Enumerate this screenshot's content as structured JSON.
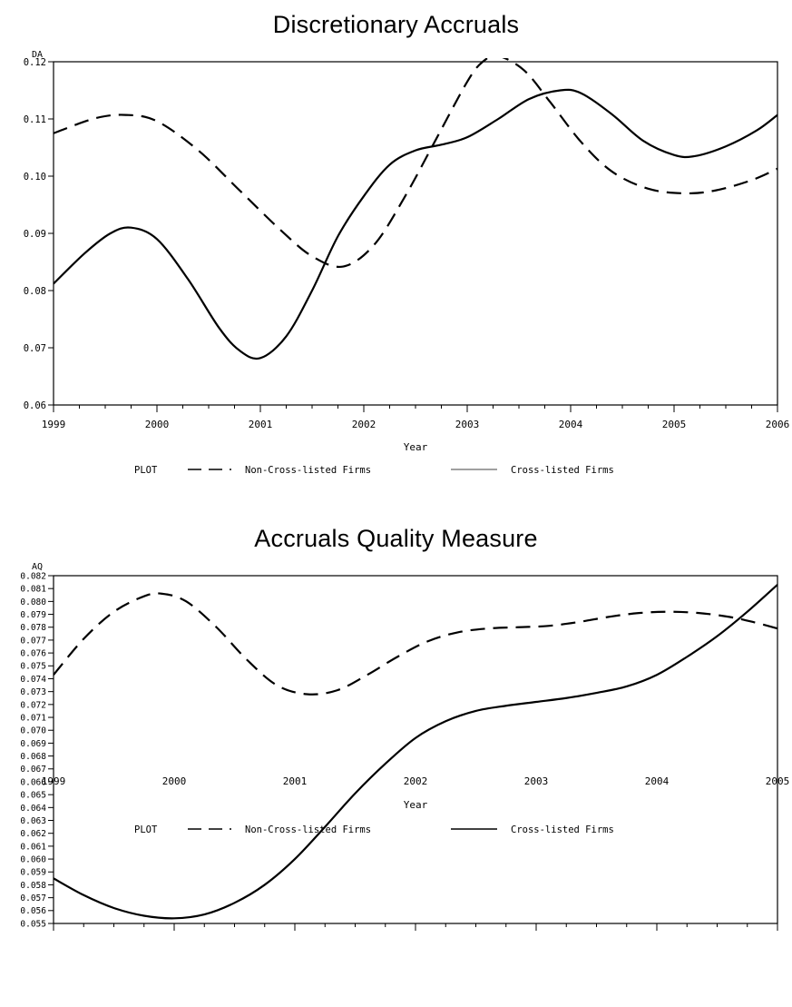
{
  "chart_data": [
    {
      "type": "line",
      "title": "Discretionary Accruals",
      "ylabel": "DA",
      "xlabel": "Year",
      "xlim": [
        1999,
        2006
      ],
      "ylim": [
        0.06,
        0.12
      ],
      "x_ticks": [
        "1999",
        "2000",
        "2001",
        "2002",
        "2003",
        "2004",
        "2005",
        "2006"
      ],
      "y_ticks": [
        "0.06",
        "0.07",
        "0.08",
        "0.09",
        "0.10",
        "0.11",
        "0.12"
      ],
      "legend": {
        "label": "PLOT",
        "position": "bottom",
        "entries": [
          "Non-Cross-listed Firms",
          "Cross-listed Firms"
        ]
      },
      "grid": false,
      "series": [
        {
          "name": "Non-Cross-listed Firms",
          "style": "dashed",
          "x": [
            1999,
            1999.4,
            1999.7,
            2000.0,
            2000.4,
            2000.8,
            2001.2,
            2001.5,
            2001.8,
            2002.1,
            2002.4,
            2002.7,
            2003.0,
            2003.15,
            2003.3,
            2003.55,
            2003.8,
            2004.1,
            2004.4,
            2004.75,
            2005.1,
            2005.4,
            2005.75,
            2006
          ],
          "values": [
            0.1075,
            0.1101,
            0.1107,
            0.1096,
            0.1045,
            0.0975,
            0.0905,
            0.086,
            0.0842,
            0.088,
            0.0965,
            0.1065,
            0.1165,
            0.12,
            0.121,
            0.1185,
            0.113,
            0.106,
            0.1008,
            0.0978,
            0.097,
            0.0975,
            0.0993,
            0.1013
          ]
        },
        {
          "name": "Cross-listed Firms",
          "style": "solid",
          "x": [
            1999,
            1999.3,
            1999.55,
            1999.75,
            2000.0,
            2000.3,
            2000.6,
            2000.8,
            2001.0,
            2001.25,
            2001.5,
            2001.75,
            2002.0,
            2002.25,
            2002.5,
            2002.75,
            2003.0,
            2003.3,
            2003.6,
            2003.9,
            2004.1,
            2004.4,
            2004.7,
            2005.0,
            2005.2,
            2005.5,
            2005.8,
            2006
          ],
          "values": [
            0.0812,
            0.0865,
            0.09,
            0.091,
            0.089,
            0.082,
            0.0735,
            0.0695,
            0.0682,
            0.072,
            0.08,
            0.0895,
            0.0965,
            0.102,
            0.1045,
            0.1055,
            0.1068,
            0.11,
            0.1135,
            0.115,
            0.1145,
            0.1108,
            0.1062,
            0.1037,
            0.1035,
            0.1052,
            0.108,
            0.1107
          ]
        }
      ]
    },
    {
      "type": "line",
      "title": "Accruals Quality Measure",
      "ylabel": "AQ",
      "xlabel": "Year",
      "xlim": [
        1999,
        2005
      ],
      "ylim": [
        0.055,
        0.082
      ],
      "x_ticks": [
        "1999",
        "2000",
        "2001",
        "2002",
        "2003",
        "2004",
        "2005"
      ],
      "y_ticks": [
        "0.055",
        "0.056",
        "0.057",
        "0.058",
        "0.059",
        "0.060",
        "0.061",
        "0.062",
        "0.063",
        "0.064",
        "0.065",
        "0.066",
        "0.067",
        "0.068",
        "0.069",
        "0.070",
        "0.071",
        "0.072",
        "0.073",
        "0.074",
        "0.075",
        "0.076",
        "0.077",
        "0.078",
        "0.079",
        "0.080",
        "0.081",
        "0.082"
      ],
      "legend": {
        "label": "PLOT",
        "position": "bottom",
        "entries": [
          "Non-Cross-listed Firms",
          "Cross-listed Firms"
        ]
      },
      "grid": false,
      "series": [
        {
          "name": "Non-Cross-listed Firms",
          "style": "dashed",
          "x": [
            1999,
            1999.25,
            1999.5,
            1999.75,
            1999.9,
            2000.1,
            2000.35,
            2000.6,
            2000.85,
            2001.1,
            2001.35,
            2001.6,
            2001.85,
            2002.1,
            2002.35,
            2002.6,
            2002.85,
            2003.1,
            2003.35,
            2003.6,
            2003.85,
            2004.1,
            2004.35,
            2004.6,
            2004.8,
            2005
          ],
          "values": [
            0.0743,
            0.0771,
            0.0792,
            0.0804,
            0.0806,
            0.08,
            0.078,
            0.0755,
            0.0735,
            0.0728,
            0.0731,
            0.0743,
            0.0757,
            0.0769,
            0.0776,
            0.0779,
            0.078,
            0.0781,
            0.0784,
            0.0788,
            0.0791,
            0.0792,
            0.0791,
            0.0788,
            0.0784,
            0.0779
          ]
        },
        {
          "name": "Cross-listed Firms",
          "style": "solid",
          "x": [
            1999,
            1999.25,
            1999.5,
            1999.75,
            2000.0,
            2000.25,
            2000.5,
            2000.75,
            2001.0,
            2001.25,
            2001.5,
            2001.75,
            2002.0,
            2002.25,
            2002.5,
            2002.75,
            2003.0,
            2003.25,
            2003.5,
            2003.75,
            2004.0,
            2004.25,
            2004.5,
            2004.75,
            2005
          ],
          "values": [
            0.0585,
            0.0572,
            0.0562,
            0.0556,
            0.0554,
            0.0557,
            0.0566,
            0.058,
            0.06,
            0.0625,
            0.0651,
            0.0674,
            0.0694,
            0.0707,
            0.0715,
            0.0719,
            0.0722,
            0.0725,
            0.0729,
            0.0734,
            0.0743,
            0.0757,
            0.0773,
            0.0792,
            0.0813
          ]
        }
      ]
    }
  ]
}
